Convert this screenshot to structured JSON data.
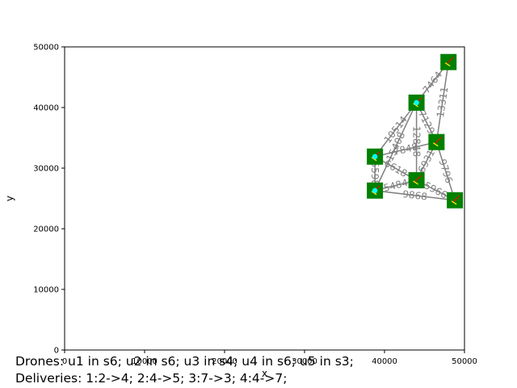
{
  "chart_data": {
    "type": "scatter",
    "title": "",
    "xlabel": "x",
    "ylabel": "y",
    "xlim": [
      0,
      50000
    ],
    "ylim": [
      0,
      50000
    ],
    "xticks": [
      0,
      10000,
      20000,
      30000,
      40000,
      50000
    ],
    "yticks": [
      0,
      10000,
      20000,
      30000,
      40000,
      50000
    ],
    "xtick_labels": [
      "0",
      "10000",
      "20000",
      "30000",
      "40000",
      "50000"
    ],
    "ytick_labels": [
      "0",
      "10000",
      "20000",
      "30000",
      "40000",
      "50000"
    ],
    "grid": false,
    "nodes": [
      {
        "id": "n1",
        "x": 48000,
        "y": 47500
      },
      {
        "id": "n2",
        "x": 44000,
        "y": 40800
      },
      {
        "id": "n3",
        "x": 46500,
        "y": 34300
      },
      {
        "id": "n4",
        "x": 38800,
        "y": 31900
      },
      {
        "id": "n5",
        "x": 38800,
        "y": 26300
      },
      {
        "id": "n6",
        "x": 44000,
        "y": 28000
      },
      {
        "id": "n7",
        "x": 48800,
        "y": 24700
      }
    ],
    "edges": [
      {
        "from": "n1",
        "to": "n2",
        "label": "7464"
      },
      {
        "from": "n1",
        "to": "n3",
        "label": "13311"
      },
      {
        "from": "n2",
        "to": "n3",
        "label": "7129"
      },
      {
        "from": "n2",
        "to": "n4",
        "label": "10514"
      },
      {
        "from": "n2",
        "to": "n5",
        "label": "15408"
      },
      {
        "from": "n2",
        "to": "n6",
        "label": "12848"
      },
      {
        "from": "n3",
        "to": "n4",
        "label": "7848"
      },
      {
        "from": "n3",
        "to": "n6",
        "label": "6931"
      },
      {
        "from": "n3",
        "to": "n7",
        "label": "9796"
      },
      {
        "from": "n4",
        "to": "n5",
        "label": "5598"
      },
      {
        "from": "n4",
        "to": "n6",
        "label": "6618"
      },
      {
        "from": "n5",
        "to": "n6",
        "label": "5484"
      },
      {
        "from": "n5",
        "to": "n7",
        "label": "9868"
      },
      {
        "from": "n6",
        "to": "n7",
        "label": "5966"
      }
    ],
    "drones_at": [
      "n4",
      "n5",
      "n2"
    ],
    "marker_color": "#008000",
    "edge_color": "#808080",
    "drone_color": "#00ffff",
    "arrow_color": "#ff0000",
    "target_color": "#ffff00"
  },
  "captions": {
    "drones": "Drones: u1 in s6; u2 in s6; u3 in s4; u4 in s6; u5 in s3;",
    "deliveries": "Deliveries: 1:2->4; 2:4->5; 3:7->3; 4:4->7;"
  }
}
